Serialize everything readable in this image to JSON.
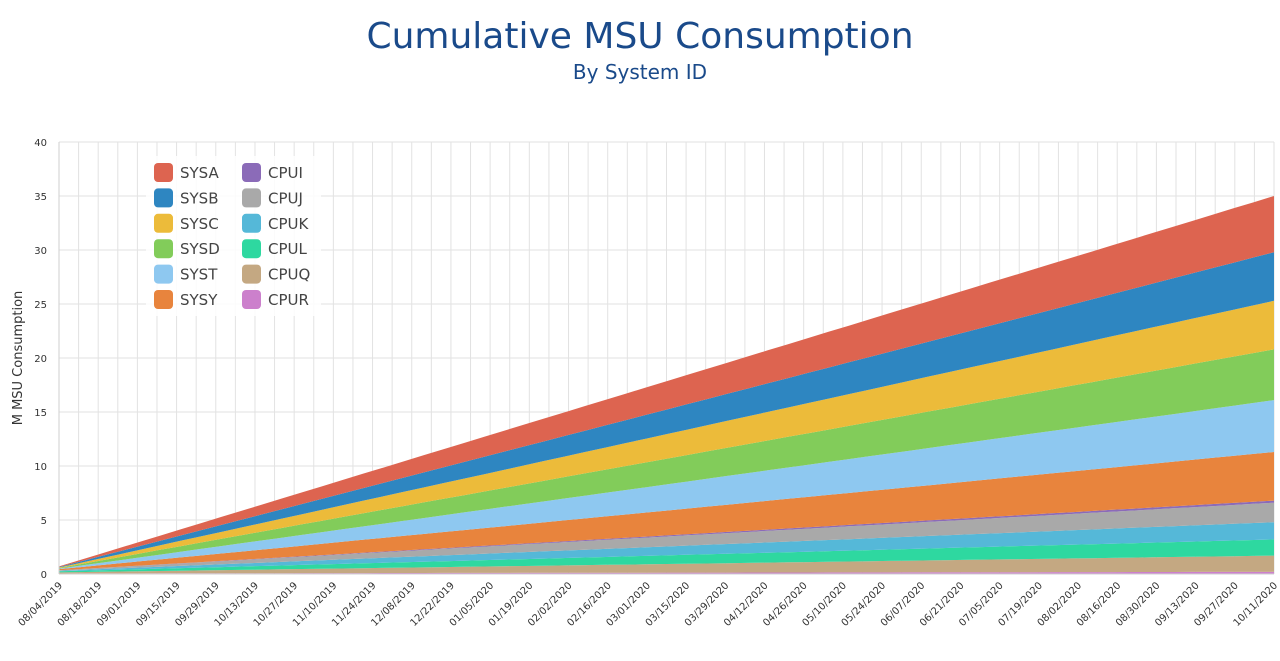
{
  "chart_data": {
    "type": "area",
    "stacked": true,
    "title": "Cumulative MSU Consumption",
    "subtitle": "By System ID",
    "ylabel": "M MSU Consumption",
    "xlabel": "",
    "ylim": [
      0,
      40
    ],
    "yticks": [
      0,
      5,
      10,
      15,
      20,
      25,
      30,
      35,
      40
    ],
    "grid": true,
    "legend_position": "top-left",
    "x_start": "08/04/2019",
    "x_end": "10/11/2020",
    "x_tick_labels": [
      "08/04/2019",
      "08/18/2019",
      "09/01/2019",
      "09/15/2019",
      "09/29/2019",
      "10/13/2019",
      "10/27/2019",
      "11/10/2019",
      "11/24/2019",
      "12/08/2019",
      "12/22/2019",
      "01/05/2020",
      "01/19/2020",
      "02/02/2020",
      "02/16/2020",
      "03/01/2020",
      "03/15/2020",
      "03/29/2020",
      "04/12/2020",
      "04/26/2020",
      "05/10/2020",
      "05/24/2020",
      "06/07/2020",
      "06/21/2020",
      "07/05/2020",
      "07/19/2020",
      "08/02/2020",
      "08/16/2020",
      "08/30/2020",
      "09/13/2020",
      "09/27/2020",
      "10/11/2020"
    ],
    "x": [
      "08/04/2019",
      "10/11/2020"
    ],
    "series": [
      {
        "name": "SYSA",
        "color": "#dd6450",
        "values": [
          0.05,
          5.2
        ]
      },
      {
        "name": "SYSB",
        "color": "#2e86c1",
        "values": [
          0.05,
          4.5
        ]
      },
      {
        "name": "SYSC",
        "color": "#ecbb3a",
        "values": [
          0.05,
          4.5
        ]
      },
      {
        "name": "SYSD",
        "color": "#82cc5a",
        "values": [
          0.05,
          4.7
        ]
      },
      {
        "name": "SYST",
        "color": "#8ec8f0",
        "values": [
          0.05,
          4.8
        ]
      },
      {
        "name": "SYSY",
        "color": "#e8843d",
        "values": [
          0.1,
          4.5
        ]
      },
      {
        "name": "CPUI",
        "color": "#8b6bb8",
        "values": [
          0.0,
          0.2
        ]
      },
      {
        "name": "CPUJ",
        "color": "#a9a9a9",
        "values": [
          0.05,
          1.8
        ]
      },
      {
        "name": "CPUK",
        "color": "#55b8d8",
        "values": [
          0.05,
          1.6
        ]
      },
      {
        "name": "CPUL",
        "color": "#2ed8a0",
        "values": [
          0.1,
          1.5
        ]
      },
      {
        "name": "CPUQ",
        "color": "#c4a882",
        "values": [
          0.1,
          1.5
        ]
      },
      {
        "name": "CPUR",
        "color": "#cc80cc",
        "values": [
          0.05,
          0.2
        ]
      }
    ]
  }
}
